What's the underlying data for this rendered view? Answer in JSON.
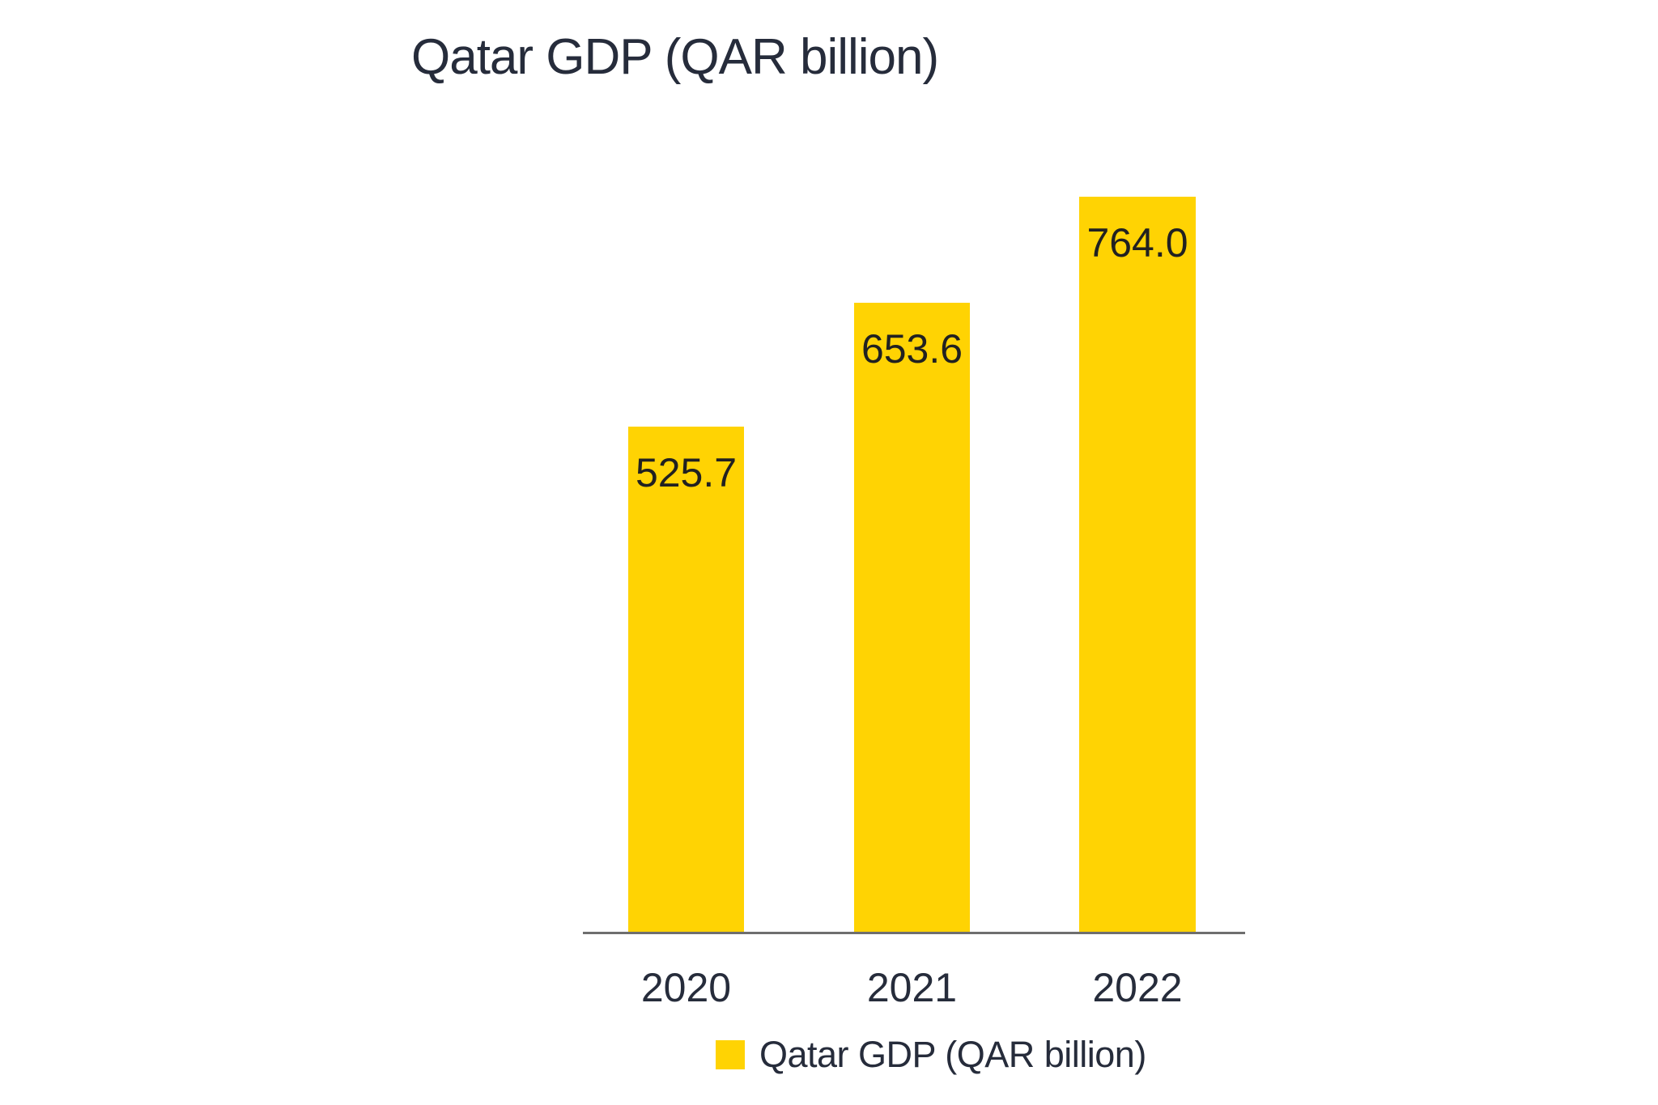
{
  "chart_data": {
    "type": "bar",
    "title": "Qatar GDP (QAR billion)",
    "categories": [
      "2020",
      "2021",
      "2022"
    ],
    "values": [
      525.7,
      653.6,
      764.0
    ],
    "data_labels": [
      "525.7",
      "653.6",
      "764.0"
    ],
    "series": [
      {
        "name": "Qatar GDP (QAR billion)",
        "values": [
          525.7,
          653.6,
          764.0
        ]
      }
    ],
    "xlabel": "",
    "ylabel": "",
    "ylim": [
      0,
      800
    ],
    "grid": false,
    "y_axis_shown": false,
    "legend": {
      "position": "bottom",
      "label": "Qatar GDP (QAR billion)"
    },
    "colors": {
      "bar": "#FFD303",
      "title_text": "#262C3B",
      "axis_text": "#262C3B",
      "bar_label_text": "#212121",
      "axis_line": "#6E6E6E",
      "background": "#FFFFFF"
    }
  }
}
